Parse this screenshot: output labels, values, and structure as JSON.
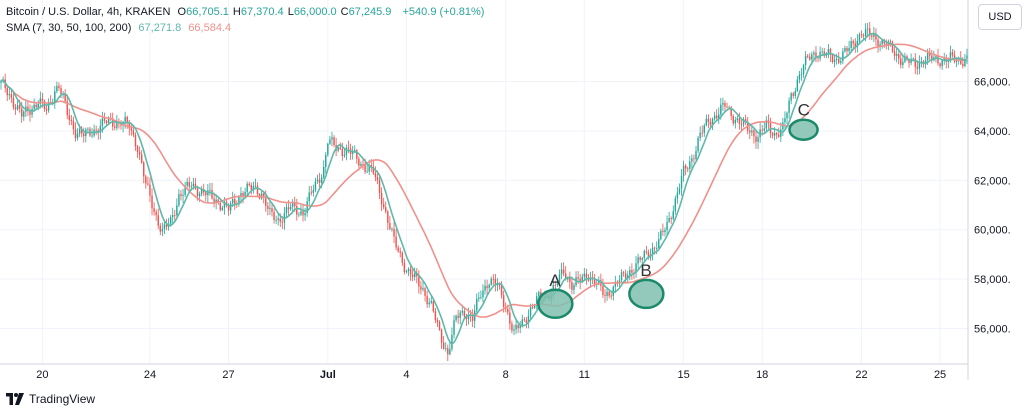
{
  "legend": {
    "symbol": "Bitcoin / U.S. Dollar, 4h, KRAKEN",
    "ohlc": [
      {
        "label": "O",
        "value": "66,705.1"
      },
      {
        "label": "H",
        "value": "67,370.4"
      },
      {
        "label": "L",
        "value": "66,000.0"
      },
      {
        "label": "C",
        "value": "67,245.9"
      }
    ],
    "change": "+540.9 (+0.81%)",
    "sma_label": "SMA (7, 30, 50, 100, 200)",
    "sma_values": [
      "67,271.8",
      "66,584.4"
    ]
  },
  "currency_button": "USD",
  "footer": {
    "brand": "TradingView"
  },
  "colors": {
    "up": "#26a69a",
    "down": "#ef5350",
    "sma_fast": "#5fb8aa",
    "sma_slow": "#f0918c",
    "circle_fill": "#7fbfae",
    "circle_stroke": "#1a8a6a",
    "axis_text": "#131722"
  },
  "chart_data": {
    "type": "candlestick",
    "title": "Bitcoin / U.S. Dollar, 4h, KRAKEN",
    "x_axis": {
      "tick_labels": [
        "20",
        "24",
        "27",
        "Jul",
        "4",
        "8",
        "11",
        "15",
        "18",
        "22",
        "25"
      ],
      "tick_index": [
        20,
        72,
        110,
        158,
        196,
        244,
        282,
        330,
        368,
        416,
        454
      ]
    },
    "y_axis": {
      "ticks": [
        56000,
        58000,
        60000,
        62000,
        64000,
        66000
      ],
      "tick_labels": [
        "56,000.",
        "58,000.",
        "60,000.",
        "62,000.",
        "64,000.",
        "66,000."
      ],
      "range": [
        54600,
        68900
      ]
    },
    "candle_count": 468,
    "close_anchors": [
      [
        0,
        65900
      ],
      [
        4,
        65500
      ],
      [
        10,
        64600
      ],
      [
        18,
        65200
      ],
      [
        22,
        64800
      ],
      [
        26,
        65700
      ],
      [
        28,
        65800
      ],
      [
        32,
        64700
      ],
      [
        36,
        64000
      ],
      [
        40,
        63800
      ],
      [
        46,
        64100
      ],
      [
        52,
        64400
      ],
      [
        58,
        64350
      ],
      [
        62,
        64200
      ],
      [
        66,
        63400
      ],
      [
        70,
        61800
      ],
      [
        74,
        60800
      ],
      [
        78,
        59900
      ],
      [
        82,
        60300
      ],
      [
        86,
        61400
      ],
      [
        92,
        61800
      ],
      [
        98,
        61500
      ],
      [
        104,
        61200
      ],
      [
        110,
        60800
      ],
      [
        116,
        61500
      ],
      [
        122,
        61700
      ],
      [
        126,
        61500
      ],
      [
        130,
        60600
      ],
      [
        134,
        60400
      ],
      [
        140,
        60900
      ],
      [
        146,
        60700
      ],
      [
        152,
        61800
      ],
      [
        156,
        62500
      ],
      [
        158,
        63600
      ],
      [
        162,
        63300
      ],
      [
        168,
        63200
      ],
      [
        174,
        62700
      ],
      [
        180,
        62300
      ],
      [
        184,
        61300
      ],
      [
        190,
        59500
      ],
      [
        196,
        58400
      ],
      [
        204,
        57600
      ],
      [
        208,
        56900
      ],
      [
        212,
        55800
      ],
      [
        216,
        55000
      ],
      [
        220,
        56400
      ],
      [
        224,
        56700
      ],
      [
        228,
        56400
      ],
      [
        232,
        57400
      ],
      [
        236,
        58000
      ],
      [
        240,
        57700
      ],
      [
        244,
        56900
      ],
      [
        248,
        55800
      ],
      [
        252,
        56200
      ],
      [
        256,
        56800
      ],
      [
        260,
        57200
      ],
      [
        264,
        57400
      ],
      [
        268,
        57700
      ],
      [
        272,
        58300
      ],
      [
        276,
        57800
      ],
      [
        280,
        57900
      ],
      [
        284,
        58200
      ],
      [
        288,
        57800
      ],
      [
        292,
        57300
      ],
      [
        296,
        57700
      ],
      [
        300,
        58000
      ],
      [
        306,
        58500
      ],
      [
        312,
        59000
      ],
      [
        318,
        59500
      ],
      [
        322,
        60200
      ],
      [
        326,
        61200
      ],
      [
        330,
        62300
      ],
      [
        334,
        62900
      ],
      [
        338,
        63800
      ],
      [
        342,
        64400
      ],
      [
        346,
        64700
      ],
      [
        350,
        65000
      ],
      [
        354,
        64600
      ],
      [
        358,
        64300
      ],
      [
        362,
        64000
      ],
      [
        366,
        63800
      ],
      [
        370,
        64200
      ],
      [
        374,
        63900
      ],
      [
        378,
        64100
      ],
      [
        382,
        65400
      ],
      [
        386,
        66300
      ],
      [
        390,
        66900
      ],
      [
        394,
        67200
      ],
      [
        398,
        67100
      ],
      [
        404,
        66900
      ],
      [
        410,
        67300
      ],
      [
        416,
        68000
      ],
      [
        422,
        67800
      ],
      [
        428,
        67500
      ],
      [
        434,
        67000
      ],
      [
        438,
        66800
      ],
      [
        442,
        66700
      ],
      [
        446,
        66900
      ]
    ],
    "series": [
      {
        "kind": "sma",
        "period": 7,
        "value": "67,271.8"
      },
      {
        "kind": "sma",
        "period": 30,
        "value": "66,584.4"
      }
    ],
    "annotations": [
      {
        "label": "A",
        "index": 268,
        "price": 57000
      },
      {
        "label": "B",
        "index": 312,
        "price": 57400
      },
      {
        "label": "C",
        "index": 388,
        "price": 64050
      }
    ]
  }
}
